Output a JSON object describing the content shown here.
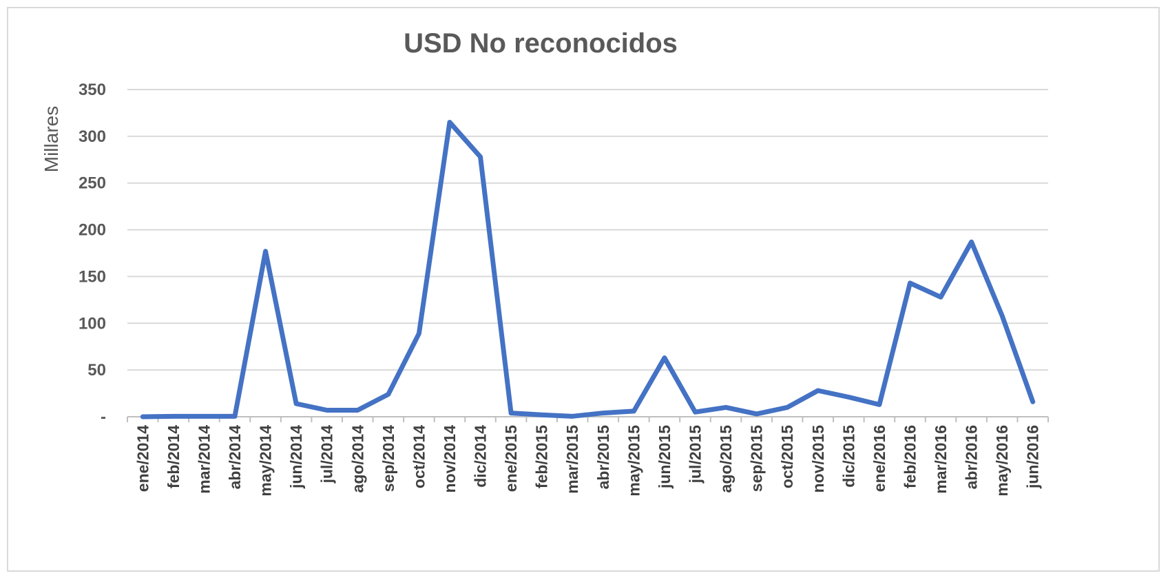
{
  "chart_data": {
    "type": "line",
    "title": "USD No reconocidos",
    "xlabel": "",
    "ylabel": "Millares",
    "ylim": [
      0,
      350
    ],
    "yticks": [
      0,
      50,
      100,
      150,
      200,
      250,
      300,
      350
    ],
    "ytick_labels": [
      "-",
      "50",
      "100",
      "150",
      "200",
      "250",
      "300",
      "350"
    ],
    "categories": [
      "ene/2014",
      "feb/2014",
      "mar/2014",
      "abr/2014",
      "may/2014",
      "jun/2014",
      "jul/2014",
      "ago/2014",
      "sep/2014",
      "oct/2014",
      "nov/2014",
      "dic/2014",
      "ene/2015",
      "feb/2015",
      "mar/2015",
      "abr/2015",
      "may/2015",
      "jun/2015",
      "jul/2015",
      "ago/2015",
      "sep/2015",
      "oct/2015",
      "nov/2015",
      "dic/2015",
      "ene/2016",
      "feb/2016",
      "mar/2016",
      "abr/2016",
      "may/2016",
      "jun/2016"
    ],
    "series": [
      {
        "values": [
          0,
          0.5,
          0.5,
          0.5,
          177,
          14,
          7,
          7,
          24,
          89,
          315,
          278,
          4,
          2,
          0.5,
          4,
          6,
          63,
          5,
          10,
          3,
          10,
          28,
          21,
          13,
          143,
          128,
          187,
          108,
          16
        ],
        "color": "#4472c4"
      }
    ],
    "grid": true,
    "legend": "none"
  }
}
